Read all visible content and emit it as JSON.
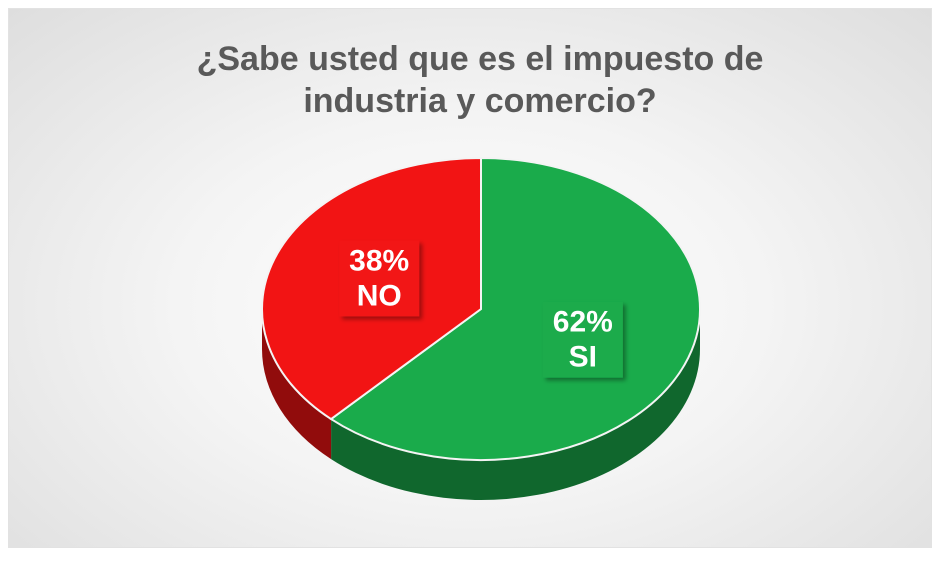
{
  "chart_data": {
    "type": "pie",
    "title": "¿Sabe usted que es el impuesto de industria y comercio?",
    "categories": [
      "SI",
      "NO"
    ],
    "values": [
      62,
      38
    ],
    "value_labels": [
      "62%",
      "38%"
    ],
    "colors": [
      "#1aab4b",
      "#f21414"
    ]
  }
}
